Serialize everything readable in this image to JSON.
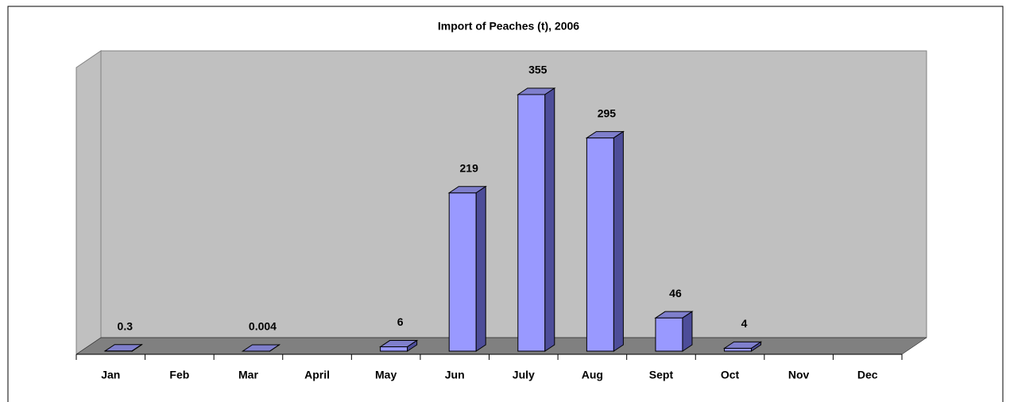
{
  "chart_data": {
    "type": "bar3d",
    "title": "Import of Peaches (t), 2006",
    "categories": [
      "Jan",
      "Feb",
      "Mar",
      "April",
      "May",
      "Jun",
      "July",
      "Aug",
      "Sept",
      "Oct",
      "Nov",
      "Dec"
    ],
    "values": [
      0.3,
      null,
      0.004,
      null,
      6,
      219,
      355,
      295,
      46,
      4,
      null,
      null
    ],
    "color": "#9999ff"
  }
}
